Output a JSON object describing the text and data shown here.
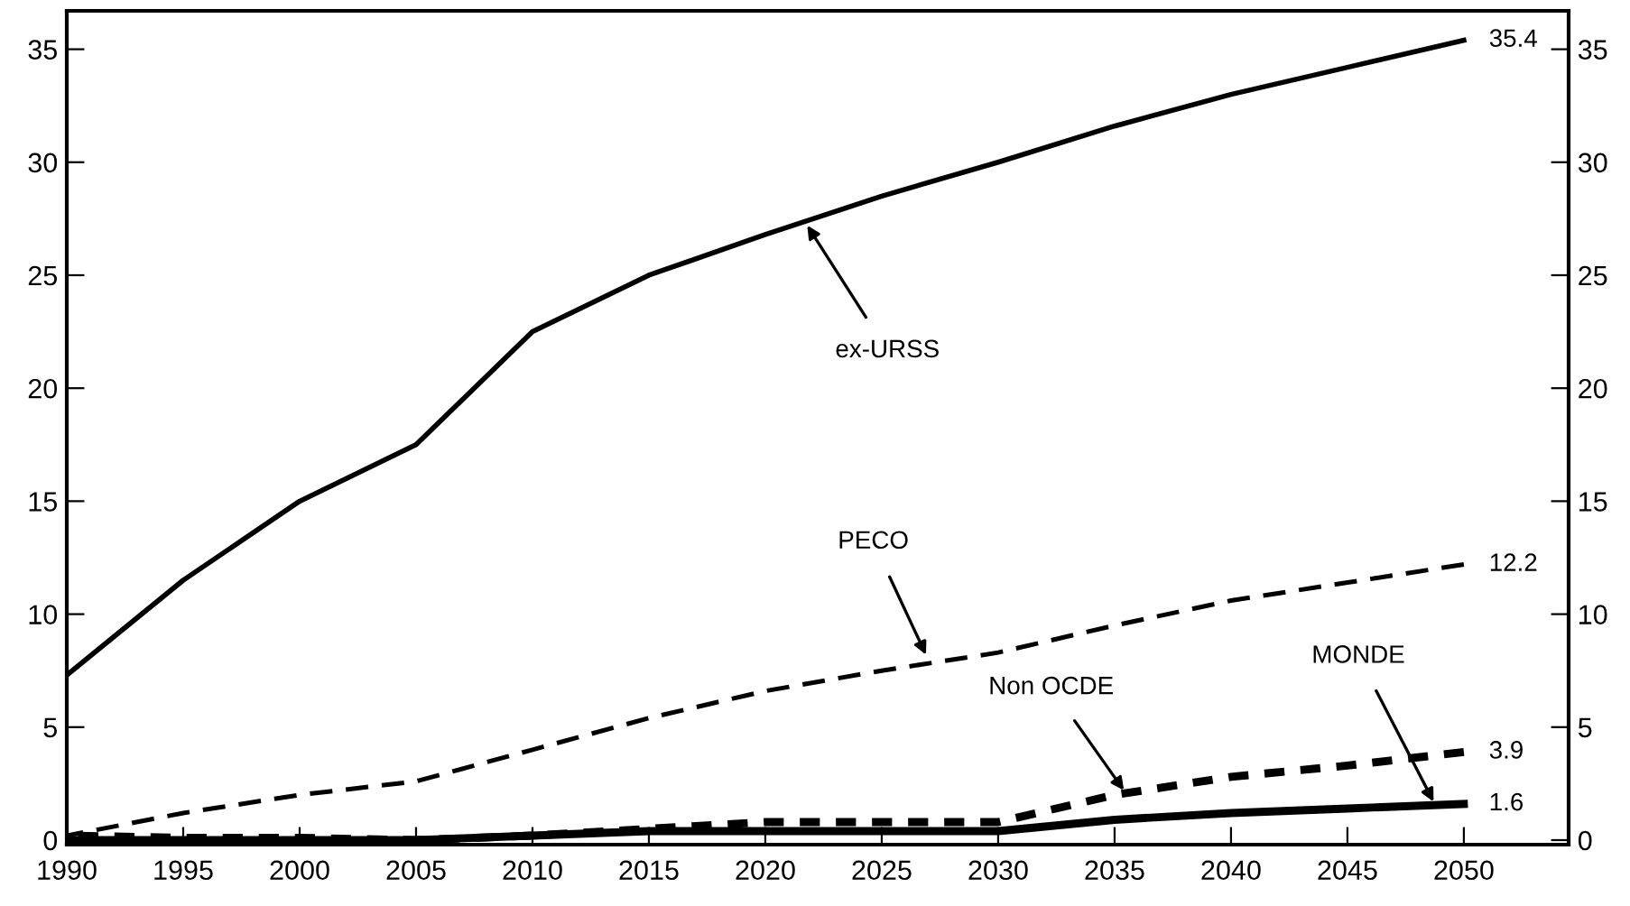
{
  "chart_data": {
    "type": "line",
    "x": [
      1990,
      1995,
      2000,
      2005,
      2010,
      2015,
      2020,
      2025,
      2030,
      2035,
      2040,
      2045,
      2050
    ],
    "series": [
      {
        "color": "#000000",
        "line_style": "solid",
        "values": [
          7.3,
          11.5,
          15,
          17.5,
          22.5,
          25,
          26.8,
          28.5,
          30,
          31.6,
          33,
          34.2,
          35.4
        ],
        "value_labels": [
          null,
          null,
          null,
          null,
          null,
          null,
          null,
          null,
          null,
          null,
          null,
          null,
          "35.4"
        ]
      },
      {
        "color": "#000000",
        "line_style": "dashed",
        "values": [
          0.2,
          1.2,
          2,
          2.6,
          4,
          5.4,
          6.6,
          7.5,
          8.3,
          9.5,
          10.6,
          11.4,
          12.2
        ],
        "value_labels": [
          null,
          null,
          null,
          null,
          null,
          null,
          null,
          null,
          null,
          null,
          null,
          null,
          "12.2"
        ]
      },
      {
        "color": "#000000",
        "line_style": "dashed",
        "values": [
          0.2,
          0.1,
          0.1,
          0,
          0.2,
          0.5,
          0.8,
          0.8,
          0.8,
          2.0,
          2.8,
          3.3,
          3.9
        ],
        "value_labels": [
          null,
          null,
          null,
          null,
          null,
          null,
          null,
          null,
          null,
          null,
          null,
          null,
          "3.9"
        ]
      },
      {
        "color": "#000000",
        "line_style": "solid",
        "values": [
          0,
          0,
          0,
          0,
          0.2,
          0.4,
          0.4,
          0.4,
          0.4,
          0.9,
          1.2,
          1.4,
          1.6
        ],
        "value_labels": [
          null,
          null,
          null,
          null,
          null,
          null,
          null,
          null,
          null,
          null,
          null,
          null,
          "1.6"
        ]
      }
    ],
    "annotations": [
      {
        "text": "ex-URSS",
        "x": 2021.8,
        "y": 27.2
      },
      {
        "text": "PECO",
        "x": 2026.9,
        "y": 8.2
      },
      {
        "text": "Non OCDE",
        "x": 2035.4,
        "y": 2.2
      },
      {
        "text": "MONDE",
        "x": 2048.7,
        "y": 1.7
      }
    ],
    "xlim": [
      1990,
      2054.5
    ],
    "xticks": [
      1990,
      1995,
      2000,
      2005,
      2010,
      2015,
      2020,
      2025,
      2030,
      2035,
      2040,
      2045,
      2050
    ],
    "ylim": [
      -0.2,
      36.7
    ],
    "yticks": [
      0,
      5,
      10,
      15,
      20,
      25,
      30,
      35
    ],
    "y2lim": [
      -0.2,
      36.7
    ],
    "y2ticks": [
      0,
      5,
      10,
      15,
      20,
      25,
      30,
      35
    ],
    "grid": false,
    "legend": false
  }
}
